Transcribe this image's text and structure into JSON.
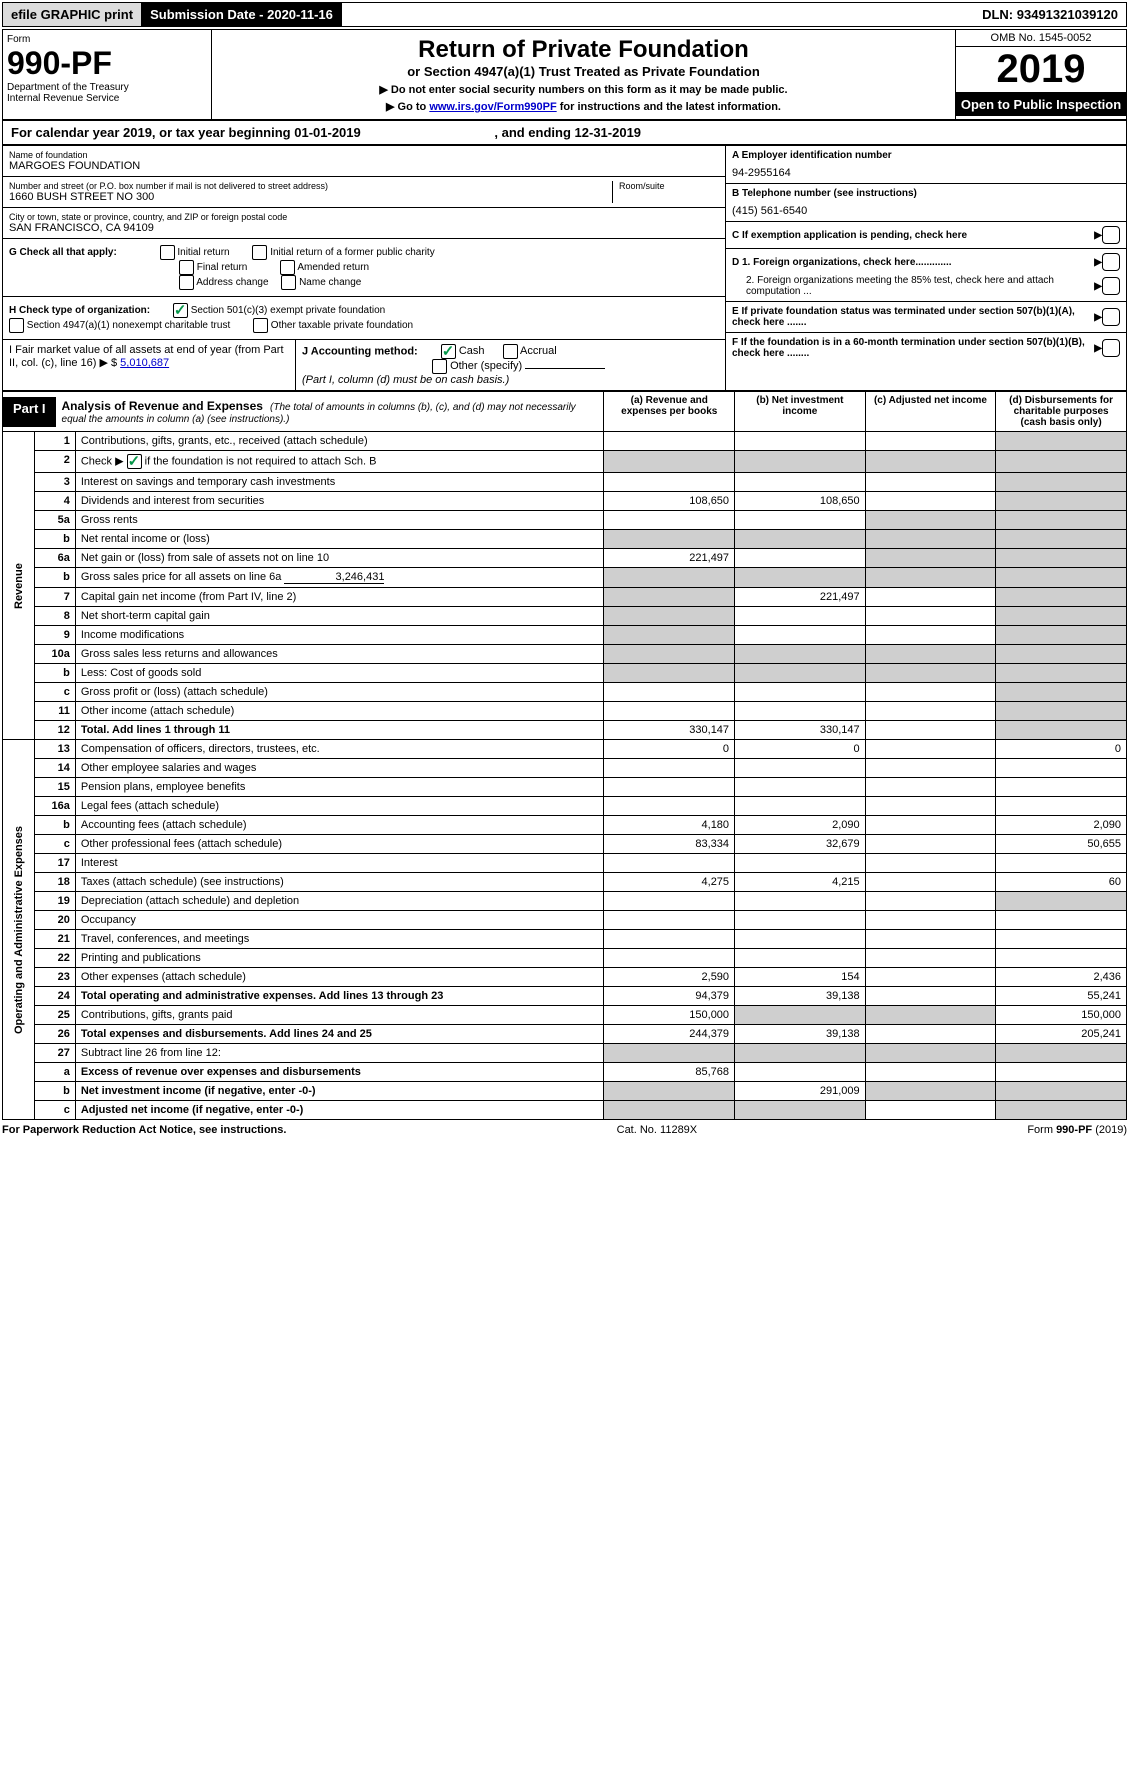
{
  "top": {
    "efile": "efile GRAPHIC print",
    "submission_label": "Submission Date - ",
    "submission_date": "2020-11-16",
    "dln_label": "DLN: ",
    "dln": "93491321039120"
  },
  "header": {
    "form_word": "Form",
    "form_no": "990-PF",
    "dept": "Department of the Treasury\nInternal Revenue Service",
    "title": "Return of Private Foundation",
    "subtitle": "or Section 4947(a)(1) Trust Treated as Private Foundation",
    "instr1": "▶ Do not enter social security numbers on this form as it may be made public.",
    "instr2_pre": "▶ Go to ",
    "instr2_link": "www.irs.gov/Form990PF",
    "instr2_post": " for instructions and the latest information.",
    "omb": "OMB No. 1545-0052",
    "year": "2019",
    "open": "Open to Public Inspection"
  },
  "cal_year": {
    "prefix": "For calendar year 2019, or tax year beginning ",
    "begin": "01-01-2019",
    "mid": " , and ending ",
    "end": "12-31-2019"
  },
  "foundation": {
    "name_label": "Name of foundation",
    "name": "MARGOES FOUNDATION",
    "street_label": "Number and street (or P.O. box number if mail is not delivered to street address)",
    "street": "1660 BUSH STREET NO 300",
    "room_label": "Room/suite",
    "city_label": "City or town, state or province, country, and ZIP or foreign postal code",
    "city": "SAN FRANCISCO, CA  94109",
    "ein_label": "A Employer identification number",
    "ein": "94-2955164",
    "phone_label": "B Telephone number (see instructions)",
    "phone": "(415) 561-6540",
    "c_label": "C If exemption application is pending, check here",
    "d1": "D 1. Foreign organizations, check here.............",
    "d2": "2. Foreign organizations meeting the 85% test, check here and attach computation ...",
    "e": "E   If private foundation status was terminated under section 507(b)(1)(A), check here .......",
    "f": "F   If the foundation is in a 60-month termination under section 507(b)(1)(B), check here ........"
  },
  "checks": {
    "g_label": "G Check all that apply:",
    "g_items": [
      "Initial return",
      "Initial return of a former public charity",
      "Final return",
      "Amended return",
      "Address change",
      "Name change"
    ],
    "h_label": "H Check type of organization:",
    "h1": "Section 501(c)(3) exempt private foundation",
    "h2": "Section 4947(a)(1) nonexempt charitable trust",
    "h3": "Other taxable private foundation",
    "i_label": "I Fair market value of all assets at end of year (from Part II, col. (c), line 16) ▶ $ ",
    "i_value": "5,010,687",
    "j_label": "J Accounting method:",
    "j_cash": "Cash",
    "j_accrual": "Accrual",
    "j_other": "Other (specify)",
    "j_note": "(Part I, column (d) must be on cash basis.)"
  },
  "part1": {
    "label": "Part I",
    "title": "Analysis of Revenue and Expenses",
    "note": "(The total of amounts in columns (b), (c), and (d) may not necessarily equal the amounts in column (a) (see instructions).)",
    "col_a": "(a)   Revenue and expenses per books",
    "col_b": "(b)   Net investment income",
    "col_c": "(c)   Adjusted net income",
    "col_d": "(d)   Disbursements for charitable purposes (cash basis only)"
  },
  "revenue_label": "Revenue",
  "expenses_label": "Operating and Administrative Expenses",
  "rows": [
    {
      "n": "1",
      "label": "Contributions, gifts, grants, etc., received (attach schedule)"
    },
    {
      "n": "2",
      "label_pre": "Check ▶ ",
      "label_post": " if the foundation is not required to attach Sch. B",
      "checked": true
    },
    {
      "n": "3",
      "label": "Interest on savings and temporary cash investments"
    },
    {
      "n": "4",
      "label": "Dividends and interest from securities",
      "a": "108,650",
      "b": "108,650"
    },
    {
      "n": "5a",
      "label": "Gross rents"
    },
    {
      "n": "b",
      "label": "Net rental income or (loss)"
    },
    {
      "n": "6a",
      "label": "Net gain or (loss) from sale of assets not on line 10",
      "a": "221,497"
    },
    {
      "n": "b",
      "label": "Gross sales price for all assets on line 6a",
      "inline_value": "3,246,431"
    },
    {
      "n": "7",
      "label": "Capital gain net income (from Part IV, line 2)",
      "b": "221,497"
    },
    {
      "n": "8",
      "label": "Net short-term capital gain"
    },
    {
      "n": "9",
      "label": "Income modifications"
    },
    {
      "n": "10a",
      "label": "Gross sales less returns and allowances"
    },
    {
      "n": "b",
      "label": "Less: Cost of goods sold"
    },
    {
      "n": "c",
      "label": "Gross profit or (loss) (attach schedule)"
    },
    {
      "n": "11",
      "label": "Other income (attach schedule)"
    },
    {
      "n": "12",
      "label": "Total. Add lines 1 through 11",
      "bold": true,
      "a": "330,147",
      "b": "330,147"
    }
  ],
  "exp_rows": [
    {
      "n": "13",
      "label": "Compensation of officers, directors, trustees, etc.",
      "a": "0",
      "b": "0",
      "d": "0"
    },
    {
      "n": "14",
      "label": "Other employee salaries and wages"
    },
    {
      "n": "15",
      "label": "Pension plans, employee benefits"
    },
    {
      "n": "16a",
      "label": "Legal fees (attach schedule)"
    },
    {
      "n": "b",
      "label": "Accounting fees (attach schedule)",
      "a": "4,180",
      "b": "2,090",
      "d": "2,090"
    },
    {
      "n": "c",
      "label": "Other professional fees (attach schedule)",
      "a": "83,334",
      "b": "32,679",
      "d": "50,655"
    },
    {
      "n": "17",
      "label": "Interest"
    },
    {
      "n": "18",
      "label": "Taxes (attach schedule) (see instructions)",
      "a": "4,275",
      "b": "4,215",
      "d": "60"
    },
    {
      "n": "19",
      "label": "Depreciation (attach schedule) and depletion"
    },
    {
      "n": "20",
      "label": "Occupancy"
    },
    {
      "n": "21",
      "label": "Travel, conferences, and meetings"
    },
    {
      "n": "22",
      "label": "Printing and publications"
    },
    {
      "n": "23",
      "label": "Other expenses (attach schedule)",
      "a": "2,590",
      "b": "154",
      "d": "2,436"
    },
    {
      "n": "24",
      "label": "Total operating and administrative expenses. Add lines 13 through 23",
      "bold": true,
      "a": "94,379",
      "b": "39,138",
      "d": "55,241"
    },
    {
      "n": "25",
      "label": "Contributions, gifts, grants paid",
      "a": "150,000",
      "d": "150,000"
    },
    {
      "n": "26",
      "label": "Total expenses and disbursements. Add lines 24 and 25",
      "bold": true,
      "a": "244,379",
      "b": "39,138",
      "d": "205,241"
    },
    {
      "n": "27",
      "label": "Subtract line 26 from line 12:"
    },
    {
      "n": "a",
      "label": "Excess of revenue over expenses and disbursements",
      "bold": true,
      "a": "85,768"
    },
    {
      "n": "b",
      "label": "Net investment income (if negative, enter -0-)",
      "bold": true,
      "b": "291,009"
    },
    {
      "n": "c",
      "label": "Adjusted net income (if negative, enter -0-)",
      "bold": true
    }
  ],
  "footer": {
    "left": "For Paperwork Reduction Act Notice, see instructions.",
    "center": "Cat. No. 11289X",
    "right": "Form 990-PF (2019)"
  }
}
